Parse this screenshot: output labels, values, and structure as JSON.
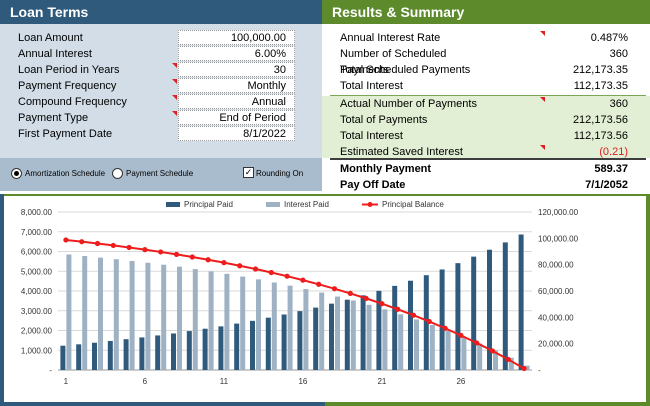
{
  "loan_terms": {
    "title": "Loan Terms",
    "fields": [
      {
        "label": "Loan Amount",
        "value": "100,000.00",
        "has_dropdown": false
      },
      {
        "label": "Annual Interest",
        "value": "6.00%",
        "has_dropdown": false
      },
      {
        "label": "Loan Period in Years",
        "value": "30",
        "has_dropdown": true
      },
      {
        "label": "Payment Frequency",
        "value": "Monthly",
        "has_dropdown": true
      },
      {
        "label": "Compound Frequency",
        "value": "Annual",
        "has_dropdown": true
      },
      {
        "label": "Payment Type",
        "value": "End of Period",
        "has_dropdown": true
      },
      {
        "label": "First Payment Date",
        "value": "8/1/2022",
        "has_dropdown": false
      }
    ]
  },
  "options": {
    "amortization_label": "Amortization Schedule",
    "payment_label": "Payment Schedule",
    "rounding_label": "Rounding On",
    "selected": "amortization",
    "rounding_checked": true
  },
  "results": {
    "title": "Results & Summary",
    "summary": [
      {
        "label": "Annual Interest Rate",
        "value": "0.487%",
        "flag": true
      },
      {
        "label": "Number of Scheduled Payments",
        "value": "360",
        "flag": false
      },
      {
        "label": "Total Scheduled Payments",
        "value": "212,173.35",
        "flag": false
      },
      {
        "label": "Total Interest",
        "value": "112,173.35",
        "flag": false
      }
    ],
    "actual": [
      {
        "label": "Actual Number of Payments",
        "value": "360",
        "flag": true
      },
      {
        "label": "Total of Payments",
        "value": "212,173.56",
        "flag": false
      },
      {
        "label": "Total Interest",
        "value": "112,173.56",
        "flag": false
      },
      {
        "label": "Estimated Saved Interest",
        "value": "(0.21)",
        "flag": true,
        "negative": true
      }
    ],
    "monthly_payment_label": "Monthly Payment",
    "monthly_payment_value": "589.37",
    "payoff_label": "Pay Off Date",
    "payoff_value": "7/1/2052"
  },
  "colors": {
    "principal": "#2f5a7c",
    "interest": "#9fb2c3",
    "balance": "#ee1c1c"
  },
  "chart_data": {
    "type": "bar",
    "x": [
      1,
      2,
      3,
      4,
      5,
      6,
      7,
      8,
      9,
      10,
      11,
      12,
      13,
      14,
      15,
      16,
      17,
      18,
      19,
      20,
      21,
      22,
      23,
      24,
      25,
      26,
      27,
      28,
      29,
      30
    ],
    "x_tick_labels": [
      "1",
      "6",
      "11",
      "16",
      "21",
      "26"
    ],
    "series": [
      {
        "name": "Principal Paid",
        "type": "bar",
        "axis": "left",
        "values": [
          1230,
          1300,
          1380,
          1470,
          1560,
          1650,
          1750,
          1850,
          1970,
          2090,
          2210,
          2350,
          2490,
          2650,
          2810,
          2980,
          3160,
          3360,
          3560,
          3780,
          4010,
          4260,
          4520,
          4800,
          5090,
          5410,
          5740,
          6090,
          6460,
          6860
        ]
      },
      {
        "name": "Interest Paid",
        "type": "bar",
        "axis": "left",
        "values": [
          5850,
          5770,
          5690,
          5610,
          5520,
          5430,
          5330,
          5230,
          5110,
          4990,
          4870,
          4730,
          4590,
          4430,
          4270,
          4100,
          3920,
          3720,
          3520,
          3300,
          3070,
          2820,
          2560,
          2280,
          1990,
          1670,
          1340,
          990,
          620,
          220
        ]
      },
      {
        "name": "Principal Balance",
        "type": "line",
        "axis": "right",
        "values": [
          98770,
          97470,
          96090,
          94620,
          93060,
          91410,
          89660,
          87810,
          85840,
          83750,
          81540,
          79190,
          76700,
          74050,
          71240,
          68260,
          65100,
          61740,
          58180,
          54400,
          50390,
          46130,
          41610,
          36810,
          31720,
          26310,
          20570,
          14480,
          8020,
          1160
        ]
      }
    ],
    "y_left_ticks": [
      "-",
      "1,000.00",
      "2,000.00",
      "3,000.00",
      "4,000.00",
      "5,000.00",
      "6,000.00",
      "7,000.00",
      "8,000.00"
    ],
    "y_right_ticks": [
      "-",
      "20,000.00",
      "40,000.00",
      "60,000.00",
      "80,000.00",
      "100,000.00",
      "120,000.00"
    ],
    "ylim_left": [
      0,
      8000
    ],
    "ylim_right": [
      0,
      120000
    ],
    "grid": true,
    "legend_position": "top"
  }
}
